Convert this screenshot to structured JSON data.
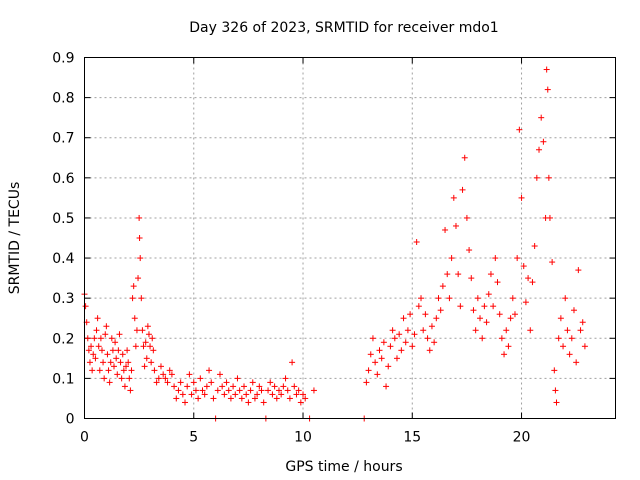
{
  "chart_data": {
    "type": "scatter",
    "title": "Day 326 of 2023, SRMTID for receiver mdo1",
    "xlabel": "GPS time / hours",
    "ylabel": "SRMTID / TECUs",
    "xlim": [
      0,
      24.3
    ],
    "ylim": [
      0,
      0.9
    ],
    "xticks": [
      0,
      5,
      10,
      15,
      20
    ],
    "xtick_labels": [
      "0",
      "5",
      "10",
      "15",
      "20"
    ],
    "yticks": [
      0,
      0.1,
      0.2,
      0.3,
      0.4,
      0.5,
      0.6,
      0.7,
      0.8,
      0.9
    ],
    "ytick_labels": [
      "0",
      "0.1",
      "0.2",
      "0.3",
      "0.4",
      "0.5",
      "0.6",
      "0.7",
      "0.8",
      "0.9"
    ],
    "grid": true,
    "marker": "+",
    "color": "#ff0000",
    "series": [
      {
        "name": "SRMTID",
        "points": [
          [
            0.0,
            0.31
          ],
          [
            0.05,
            0.28
          ],
          [
            0.1,
            0.24
          ],
          [
            0.15,
            0.2
          ],
          [
            0.2,
            0.17
          ],
          [
            0.25,
            0.14
          ],
          [
            0.3,
            0.18
          ],
          [
            0.35,
            0.12
          ],
          [
            0.4,
            0.16
          ],
          [
            0.45,
            0.2
          ],
          [
            0.5,
            0.15
          ],
          [
            0.55,
            0.22
          ],
          [
            0.6,
            0.25
          ],
          [
            0.65,
            0.18
          ],
          [
            0.7,
            0.12
          ],
          [
            0.75,
            0.2
          ],
          [
            0.8,
            0.17
          ],
          [
            0.85,
            0.14
          ],
          [
            0.9,
            0.1
          ],
          [
            0.95,
            0.21
          ],
          [
            1.0,
            0.23
          ],
          [
            1.05,
            0.16
          ],
          [
            1.1,
            0.12
          ],
          [
            1.15,
            0.09
          ],
          [
            1.2,
            0.14
          ],
          [
            1.25,
            0.2
          ],
          [
            1.3,
            0.17
          ],
          [
            1.35,
            0.13
          ],
          [
            1.4,
            0.19
          ],
          [
            1.45,
            0.15
          ],
          [
            1.5,
            0.11
          ],
          [
            1.55,
            0.17
          ],
          [
            1.6,
            0.21
          ],
          [
            1.65,
            0.14
          ],
          [
            1.7,
            0.1
          ],
          [
            1.75,
            0.16
          ],
          [
            1.8,
            0.12
          ],
          [
            1.85,
            0.08
          ],
          [
            1.9,
            0.13
          ],
          [
            1.95,
            0.17
          ],
          [
            2.0,
            0.14
          ],
          [
            2.05,
            0.1
          ],
          [
            2.1,
            0.07
          ],
          [
            2.15,
            0.12
          ],
          [
            2.2,
            0.3
          ],
          [
            2.25,
            0.33
          ],
          [
            2.3,
            0.25
          ],
          [
            2.35,
            0.18
          ],
          [
            2.4,
            0.22
          ],
          [
            2.45,
            0.35
          ],
          [
            2.5,
            0.5
          ],
          [
            2.52,
            0.45
          ],
          [
            2.55,
            0.4
          ],
          [
            2.6,
            0.3
          ],
          [
            2.65,
            0.22
          ],
          [
            2.7,
            0.18
          ],
          [
            2.75,
            0.13
          ],
          [
            2.8,
            0.19
          ],
          [
            2.85,
            0.15
          ],
          [
            2.9,
            0.23
          ],
          [
            2.95,
            0.21
          ],
          [
            3.0,
            0.18
          ],
          [
            3.05,
            0.14
          ],
          [
            3.1,
            0.2
          ],
          [
            3.15,
            0.17
          ],
          [
            3.2,
            0.12
          ],
          [
            3.3,
            0.09
          ],
          [
            3.4,
            0.1
          ],
          [
            3.5,
            0.13
          ],
          [
            3.6,
            0.11
          ],
          [
            3.7,
            0.1
          ],
          [
            3.8,
            0.09
          ],
          [
            3.9,
            0.12
          ],
          [
            4.0,
            0.11
          ],
          [
            4.1,
            0.08
          ],
          [
            4.2,
            0.05
          ],
          [
            4.3,
            0.07
          ],
          [
            4.4,
            0.09
          ],
          [
            4.5,
            0.06
          ],
          [
            4.6,
            0.04
          ],
          [
            4.7,
            0.08
          ],
          [
            4.8,
            0.11
          ],
          [
            4.9,
            0.06
          ],
          [
            5.0,
            0.09
          ],
          [
            5.1,
            0.07
          ],
          [
            5.2,
            0.05
          ],
          [
            5.3,
            0.1
          ],
          [
            5.4,
            0.07
          ],
          [
            5.5,
            0.06
          ],
          [
            5.6,
            0.08
          ],
          [
            5.7,
            0.12
          ],
          [
            5.8,
            0.09
          ],
          [
            5.9,
            0.05
          ],
          [
            6.0,
            0.0
          ],
          [
            6.1,
            0.07
          ],
          [
            6.2,
            0.11
          ],
          [
            6.3,
            0.08
          ],
          [
            6.4,
            0.06
          ],
          [
            6.5,
            0.09
          ],
          [
            6.6,
            0.07
          ],
          [
            6.7,
            0.05
          ],
          [
            6.8,
            0.08
          ],
          [
            6.9,
            0.06
          ],
          [
            7.0,
            0.1
          ],
          [
            7.1,
            0.07
          ],
          [
            7.2,
            0.05
          ],
          [
            7.3,
            0.08
          ],
          [
            7.4,
            0.06
          ],
          [
            7.5,
            0.04
          ],
          [
            7.6,
            0.07
          ],
          [
            7.7,
            0.09
          ],
          [
            7.8,
            0.05
          ],
          [
            7.9,
            0.06
          ],
          [
            8.0,
            0.08
          ],
          [
            8.1,
            0.07
          ],
          [
            8.2,
            0.04
          ],
          [
            8.3,
            0.0
          ],
          [
            8.4,
            0.07
          ],
          [
            8.5,
            0.09
          ],
          [
            8.6,
            0.06
          ],
          [
            8.7,
            0.08
          ],
          [
            8.8,
            0.05
          ],
          [
            8.9,
            0.07
          ],
          [
            9.0,
            0.06
          ],
          [
            9.1,
            0.08
          ],
          [
            9.2,
            0.1
          ],
          [
            9.3,
            0.07
          ],
          [
            9.4,
            0.05
          ],
          [
            9.5,
            0.14
          ],
          [
            9.6,
            0.08
          ],
          [
            9.7,
            0.06
          ],
          [
            9.8,
            0.07
          ],
          [
            9.9,
            0.04
          ],
          [
            10.0,
            0.06
          ],
          [
            10.1,
            0.05
          ],
          [
            10.3,
            0.0
          ],
          [
            10.5,
            0.07
          ],
          [
            12.8,
            0.0
          ],
          [
            12.9,
            0.09
          ],
          [
            13.0,
            0.12
          ],
          [
            13.1,
            0.16
          ],
          [
            13.2,
            0.2
          ],
          [
            13.3,
            0.14
          ],
          [
            13.4,
            0.11
          ],
          [
            13.5,
            0.17
          ],
          [
            13.6,
            0.15
          ],
          [
            13.7,
            0.19
          ],
          [
            13.8,
            0.08
          ],
          [
            13.9,
            0.13
          ],
          [
            14.0,
            0.18
          ],
          [
            14.1,
            0.22
          ],
          [
            14.2,
            0.2
          ],
          [
            14.3,
            0.15
          ],
          [
            14.4,
            0.21
          ],
          [
            14.5,
            0.17
          ],
          [
            14.6,
            0.25
          ],
          [
            14.7,
            0.19
          ],
          [
            14.8,
            0.22
          ],
          [
            14.9,
            0.26
          ],
          [
            15.0,
            0.18
          ],
          [
            15.1,
            0.21
          ],
          [
            15.2,
            0.44
          ],
          [
            15.3,
            0.28
          ],
          [
            15.4,
            0.3
          ],
          [
            15.5,
            0.22
          ],
          [
            15.6,
            0.26
          ],
          [
            15.7,
            0.2
          ],
          [
            15.8,
            0.17
          ],
          [
            15.9,
            0.23
          ],
          [
            16.0,
            0.19
          ],
          [
            16.1,
            0.25
          ],
          [
            16.2,
            0.3
          ],
          [
            16.3,
            0.27
          ],
          [
            16.4,
            0.33
          ],
          [
            16.5,
            0.47
          ],
          [
            16.6,
            0.36
          ],
          [
            16.7,
            0.3
          ],
          [
            16.8,
            0.4
          ],
          [
            16.9,
            0.55
          ],
          [
            17.0,
            0.48
          ],
          [
            17.1,
            0.36
          ],
          [
            17.2,
            0.28
          ],
          [
            17.3,
            0.57
          ],
          [
            17.4,
            0.65
          ],
          [
            17.5,
            0.5
          ],
          [
            17.6,
            0.42
          ],
          [
            17.7,
            0.35
          ],
          [
            17.8,
            0.27
          ],
          [
            17.9,
            0.22
          ],
          [
            18.0,
            0.3
          ],
          [
            18.1,
            0.25
          ],
          [
            18.2,
            0.2
          ],
          [
            18.3,
            0.28
          ],
          [
            18.4,
            0.24
          ],
          [
            18.5,
            0.31
          ],
          [
            18.6,
            0.36
          ],
          [
            18.7,
            0.28
          ],
          [
            18.8,
            0.4
          ],
          [
            18.9,
            0.34
          ],
          [
            19.0,
            0.26
          ],
          [
            19.1,
            0.2
          ],
          [
            19.2,
            0.16
          ],
          [
            19.3,
            0.22
          ],
          [
            19.4,
            0.18
          ],
          [
            19.5,
            0.25
          ],
          [
            19.6,
            0.3
          ],
          [
            19.7,
            0.26
          ],
          [
            19.8,
            0.4
          ],
          [
            19.9,
            0.72
          ],
          [
            20.0,
            0.55
          ],
          [
            20.1,
            0.38
          ],
          [
            20.2,
            0.29
          ],
          [
            20.3,
            0.35
          ],
          [
            20.4,
            0.22
          ],
          [
            20.5,
            0.34
          ],
          [
            20.6,
            0.43
          ],
          [
            20.7,
            0.6
          ],
          [
            20.8,
            0.67
          ],
          [
            20.9,
            0.75
          ],
          [
            21.0,
            0.69
          ],
          [
            21.1,
            0.5
          ],
          [
            21.15,
            0.87
          ],
          [
            21.2,
            0.82
          ],
          [
            21.25,
            0.6
          ],
          [
            21.3,
            0.5
          ],
          [
            21.4,
            0.39
          ],
          [
            21.5,
            0.12
          ],
          [
            21.55,
            0.07
          ],
          [
            21.6,
            0.04
          ],
          [
            21.7,
            0.2
          ],
          [
            21.8,
            0.25
          ],
          [
            21.9,
            0.18
          ],
          [
            22.0,
            0.3
          ],
          [
            22.1,
            0.22
          ],
          [
            22.2,
            0.16
          ],
          [
            22.3,
            0.2
          ],
          [
            22.4,
            0.27
          ],
          [
            22.5,
            0.14
          ],
          [
            22.6,
            0.37
          ],
          [
            22.7,
            0.22
          ],
          [
            22.8,
            0.24
          ],
          [
            22.9,
            0.18
          ]
        ]
      }
    ]
  }
}
